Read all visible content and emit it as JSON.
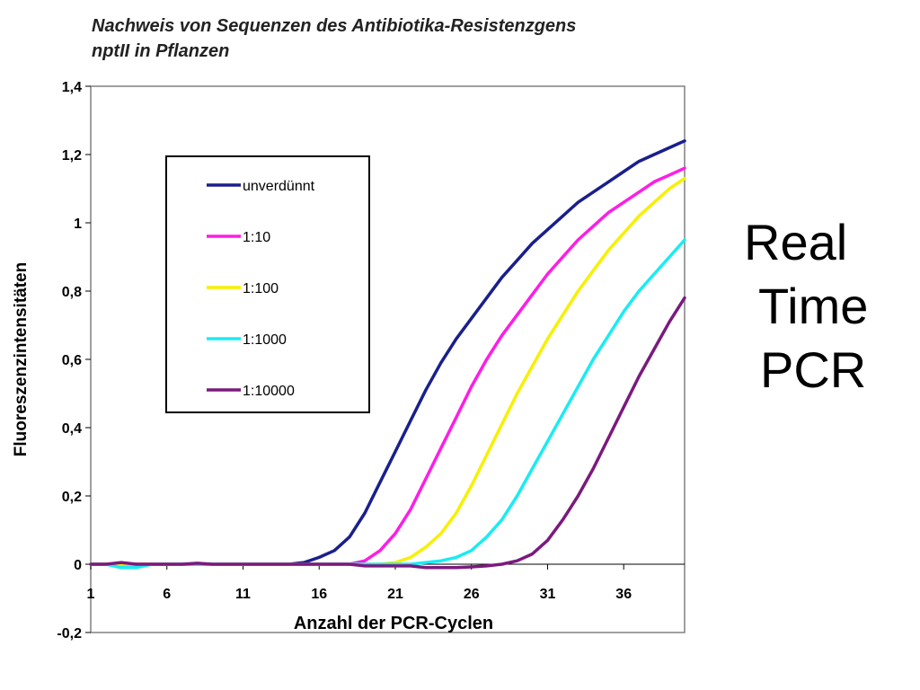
{
  "chart_data": {
    "type": "line",
    "title_lines": [
      "Nachweis von Sequenzen des Antibiotika-Resistenzgens",
      "nptII  in Pflanzen"
    ],
    "xlabel": "Anzahl der PCR-Cyclen",
    "ylabel": "Fluoreszenzintensitäten",
    "xlim": [
      1,
      40
    ],
    "ylim": [
      -0.2,
      1.4
    ],
    "xticks": [
      1,
      6,
      11,
      16,
      21,
      26,
      31,
      36
    ],
    "yticks": [
      -0.2,
      0,
      0.2,
      0.4,
      0.6,
      0.8,
      1,
      1.2,
      1.4
    ],
    "ytick_labels": [
      "-0,2",
      "0",
      "0,2",
      "0,4",
      "0,6",
      "0,8",
      "1",
      "1,2",
      "1,4"
    ],
    "grid": false,
    "legend_position": "upper-left",
    "series": [
      {
        "name": "unverdünnt",
        "color": "#1a1f8c",
        "x": [
          1,
          2,
          3,
          4,
          5,
          6,
          7,
          8,
          9,
          10,
          11,
          12,
          13,
          14,
          15,
          16,
          17,
          18,
          19,
          20,
          21,
          22,
          23,
          24,
          25,
          26,
          27,
          28,
          29,
          30,
          31,
          32,
          33,
          34,
          35,
          36,
          37,
          38,
          39,
          40
        ],
        "values": [
          0,
          0,
          0,
          0,
          0,
          0,
          0,
          0,
          0,
          0,
          0,
          0,
          0,
          0,
          0.005,
          0.02,
          0.04,
          0.08,
          0.15,
          0.24,
          0.33,
          0.42,
          0.51,
          0.59,
          0.66,
          0.72,
          0.78,
          0.84,
          0.89,
          0.94,
          0.98,
          1.02,
          1.06,
          1.09,
          1.12,
          1.15,
          1.18,
          1.2,
          1.22,
          1.24
        ]
      },
      {
        "name": "1:10",
        "color": "#ff1de6",
        "x": [
          1,
          2,
          3,
          4,
          5,
          6,
          7,
          8,
          9,
          10,
          11,
          12,
          13,
          14,
          15,
          16,
          17,
          18,
          19,
          20,
          21,
          22,
          23,
          24,
          25,
          26,
          27,
          28,
          29,
          30,
          31,
          32,
          33,
          34,
          35,
          36,
          37,
          38,
          39,
          40
        ],
        "values": [
          0,
          0,
          0,
          0,
          0,
          0,
          0,
          0,
          0,
          0,
          0,
          0,
          0,
          0,
          0,
          0,
          0,
          0,
          0.01,
          0.04,
          0.09,
          0.16,
          0.25,
          0.34,
          0.43,
          0.52,
          0.6,
          0.67,
          0.73,
          0.79,
          0.85,
          0.9,
          0.95,
          0.99,
          1.03,
          1.06,
          1.09,
          1.12,
          1.14,
          1.16
        ]
      },
      {
        "name": "1:100",
        "color": "#f7f000",
        "x": [
          1,
          2,
          3,
          4,
          5,
          6,
          7,
          8,
          9,
          10,
          11,
          12,
          13,
          14,
          15,
          16,
          17,
          18,
          19,
          20,
          21,
          22,
          23,
          24,
          25,
          26,
          27,
          28,
          29,
          30,
          31,
          32,
          33,
          34,
          35,
          36,
          37,
          38,
          39,
          40
        ],
        "values": [
          0,
          0,
          0,
          0,
          0,
          0,
          0,
          0,
          0,
          0,
          0,
          0,
          0,
          0,
          0,
          0,
          0,
          0,
          0,
          0,
          0.005,
          0.02,
          0.05,
          0.09,
          0.15,
          0.23,
          0.32,
          0.41,
          0.5,
          0.58,
          0.66,
          0.73,
          0.8,
          0.86,
          0.92,
          0.97,
          1.02,
          1.06,
          1.1,
          1.13
        ]
      },
      {
        "name": "1:1000",
        "color": "#19ecf4",
        "x": [
          1,
          2,
          3,
          4,
          5,
          6,
          7,
          8,
          9,
          10,
          11,
          12,
          13,
          14,
          15,
          16,
          17,
          18,
          19,
          20,
          21,
          22,
          23,
          24,
          25,
          26,
          27,
          28,
          29,
          30,
          31,
          32,
          33,
          34,
          35,
          36,
          37,
          38,
          39,
          40
        ],
        "values": [
          0,
          0,
          -0.01,
          -0.01,
          0,
          0,
          0,
          0,
          0,
          0,
          0,
          0,
          0,
          0,
          0,
          0,
          0,
          0,
          0,
          0,
          0,
          0,
          0.005,
          0.01,
          0.02,
          0.04,
          0.08,
          0.13,
          0.2,
          0.28,
          0.36,
          0.44,
          0.52,
          0.6,
          0.67,
          0.74,
          0.8,
          0.85,
          0.9,
          0.95
        ]
      },
      {
        "name": "1:10000",
        "color": "#7b1a7e",
        "x": [
          1,
          2,
          3,
          4,
          5,
          6,
          7,
          8,
          9,
          10,
          11,
          12,
          13,
          14,
          15,
          16,
          17,
          18,
          19,
          20,
          21,
          22,
          23,
          24,
          25,
          26,
          27,
          28,
          29,
          30,
          31,
          32,
          33,
          34,
          35,
          36,
          37,
          38,
          39,
          40
        ],
        "values": [
          0,
          0,
          0.005,
          0,
          0,
          0,
          0,
          0.003,
          0,
          0,
          0,
          0,
          0,
          0,
          0,
          0,
          0,
          0,
          -0.005,
          -0.005,
          -0.005,
          -0.005,
          -0.01,
          -0.01,
          -0.01,
          -0.008,
          -0.005,
          0,
          0.01,
          0.03,
          0.07,
          0.13,
          0.2,
          0.28,
          0.37,
          0.46,
          0.55,
          0.63,
          0.71,
          0.78
        ]
      }
    ]
  },
  "side_label": {
    "lines": [
      "Real",
      "Time",
      "PCR"
    ]
  }
}
